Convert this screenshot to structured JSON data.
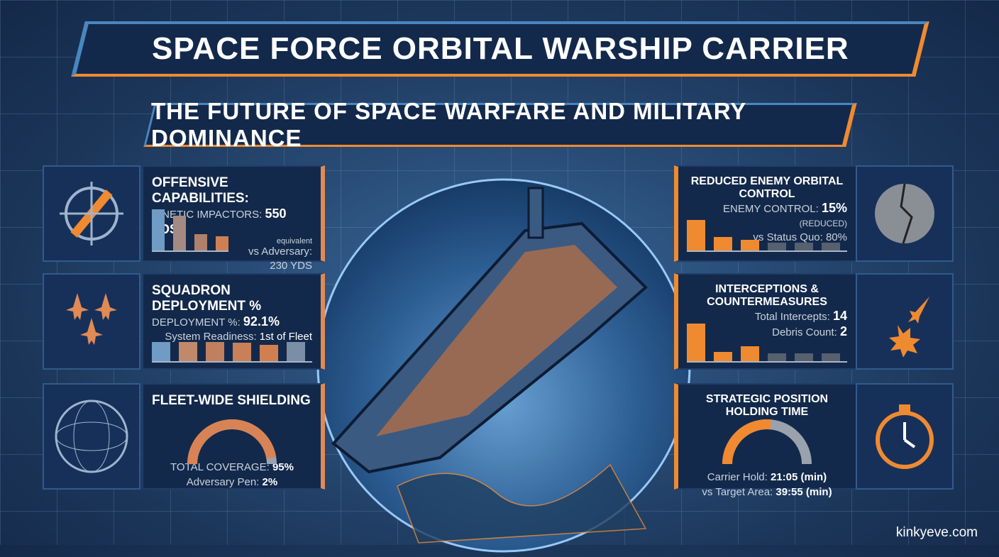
{
  "title": "SPACE FORCE ORBITAL WARSHIP CARRIER",
  "subtitle": "THE FUTURE OF SPACE WARFARE AND MILITARY DOMINANCE",
  "colors": {
    "blue": "#4a86c0",
    "orange": "#f08a30",
    "navy": "#13294b"
  },
  "left": [
    {
      "icon": "missile-target-icon",
      "heading": "OFFENSIVE CAPABILITIES:",
      "l1_label": "KINETIC IMPACTORS: ",
      "l1_value": "550 YDS",
      "note": "equivalent",
      "l2_label": "vs Adversary:",
      "l2_value": "230 YDS",
      "bars": [
        100,
        85,
        40,
        35
      ]
    },
    {
      "icon": "fighter-jets-icon",
      "heading": "SQUADRON DEPLOYMENT %",
      "l1_label": "DEPLOYMENT %: ",
      "l1_value": "92.1%",
      "l2_label": "System Readiness: ",
      "l2_value": "1st of Fleet",
      "bars": [
        70,
        72,
        70,
        68,
        60,
        72
      ]
    },
    {
      "icon": "shield-sphere-icon",
      "heading": "FLEET-WIDE SHIELDING",
      "l1_label": "TOTAL COVERAGE: ",
      "l1_value": "95%",
      "l2_label": "Adversary Pen: ",
      "l2_value": "2%",
      "gauge": 95
    }
  ],
  "right": [
    {
      "icon": "cracked-moon-icon",
      "heading": "REDUCED ENEMY ORBITAL CONTROL",
      "l1_label": "ENEMY CONTROL: ",
      "l1_value": "15%",
      "l1_suffix": " (REDUCED)",
      "l2_label": "vs Status Quo: ",
      "l2_value": "80%",
      "bars": [
        100,
        45,
        35,
        25,
        25,
        25
      ]
    },
    {
      "icon": "explosion-jet-icon",
      "heading": "INTERCEPTIONS & COUNTERMEASURES",
      "l1_label": "Total Intercepts: ",
      "l1_value": "14",
      "l2_label": "Debris Count: ",
      "l2_value": "2",
      "bars": [
        100,
        25,
        40,
        20,
        20,
        20
      ]
    },
    {
      "icon": "stopwatch-icon",
      "heading": "STRATEGIC POSITION HOLDING TIME",
      "l1_label": "Carrier Hold: ",
      "l1_value": "21:05 (min)",
      "l2_label": "vs Target Area: ",
      "l2_value": "39:55 (min)",
      "gauge": 53
    }
  ],
  "credit": "kinkyeve.com"
}
